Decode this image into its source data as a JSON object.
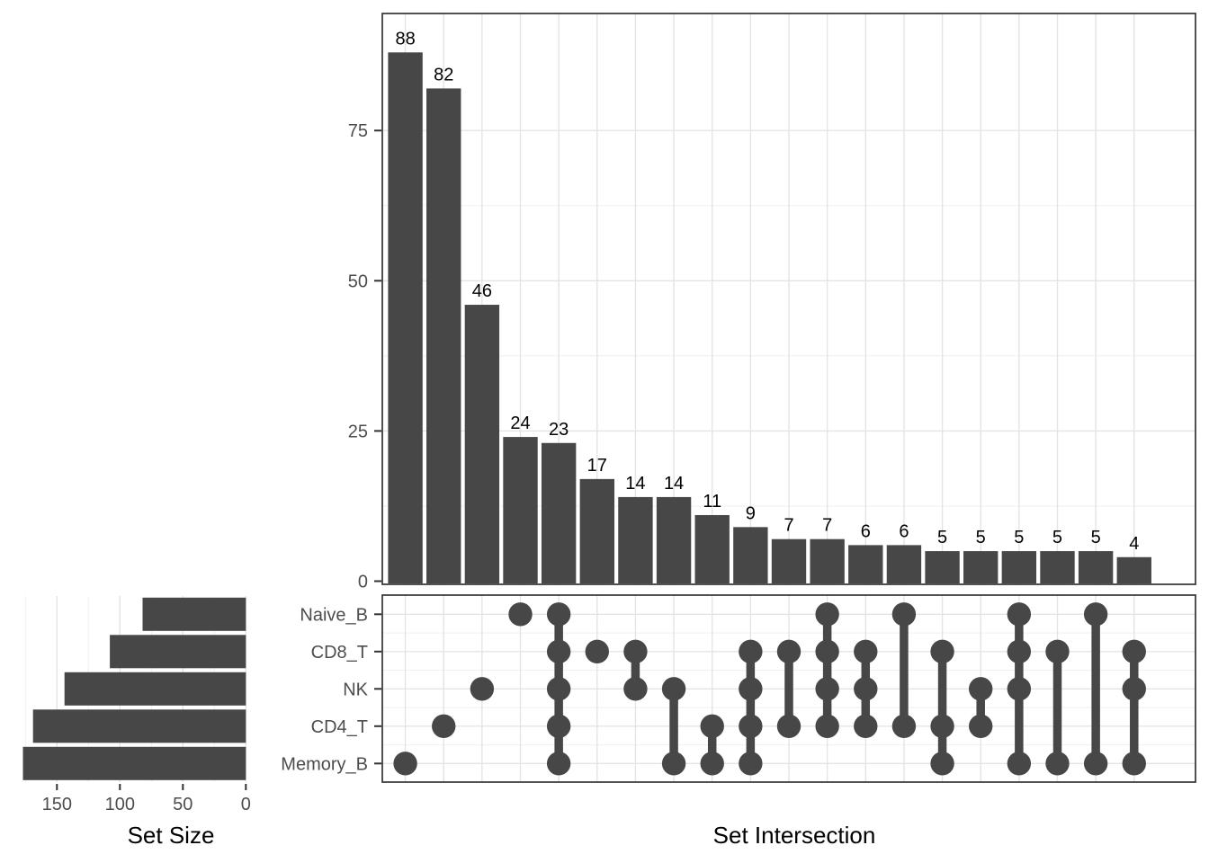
{
  "chart_data": {
    "type": "upset",
    "sets": [
      {
        "name": "Naive_B",
        "size": 82
      },
      {
        "name": "CD8_T",
        "size": 108
      },
      {
        "name": "NK",
        "size": 144
      },
      {
        "name": "CD4_T",
        "size": 169
      },
      {
        "name": "Memory_B",
        "size": 177
      }
    ],
    "intersections": [
      {
        "sets": [
          "Memory_B"
        ],
        "size": 88
      },
      {
        "sets": [
          "CD4_T"
        ],
        "size": 82
      },
      {
        "sets": [
          "NK"
        ],
        "size": 46
      },
      {
        "sets": [
          "Naive_B"
        ],
        "size": 24
      },
      {
        "sets": [
          "Naive_B",
          "CD8_T",
          "NK",
          "CD4_T",
          "Memory_B"
        ],
        "size": 23
      },
      {
        "sets": [
          "CD8_T"
        ],
        "size": 17
      },
      {
        "sets": [
          "CD8_T",
          "NK"
        ],
        "size": 14
      },
      {
        "sets": [
          "NK",
          "Memory_B"
        ],
        "size": 14
      },
      {
        "sets": [
          "CD4_T",
          "Memory_B"
        ],
        "size": 11
      },
      {
        "sets": [
          "CD8_T",
          "NK",
          "CD4_T",
          "Memory_B"
        ],
        "size": 9
      },
      {
        "sets": [
          "CD8_T",
          "CD4_T"
        ],
        "size": 7
      },
      {
        "sets": [
          "Naive_B",
          "CD8_T",
          "NK",
          "CD4_T"
        ],
        "size": 7
      },
      {
        "sets": [
          "CD8_T",
          "NK",
          "CD4_T"
        ],
        "size": 6
      },
      {
        "sets": [
          "Naive_B",
          "CD4_T"
        ],
        "size": 6
      },
      {
        "sets": [
          "CD8_T",
          "CD4_T",
          "Memory_B"
        ],
        "size": 5
      },
      {
        "sets": [
          "NK",
          "CD4_T"
        ],
        "size": 5
      },
      {
        "sets": [
          "Naive_B",
          "CD8_T",
          "NK",
          "Memory_B"
        ],
        "size": 5
      },
      {
        "sets": [
          "CD8_T",
          "Memory_B"
        ],
        "size": 5
      },
      {
        "sets": [
          "Naive_B",
          "Memory_B"
        ],
        "size": 5
      },
      {
        "sets": [
          "CD8_T",
          "NK",
          "Memory_B"
        ],
        "size": 4
      }
    ],
    "intersection_axis": {
      "ticks": [
        0,
        25,
        50,
        75
      ],
      "ylim": [
        0,
        93
      ]
    },
    "set_size_axis": {
      "label": "Set Size",
      "ticks": [
        150,
        100,
        50,
        0
      ],
      "range": [
        0,
        177
      ],
      "direction": "reversed"
    },
    "x_axis": {
      "label": "Set Intersection"
    },
    "legend": "none",
    "grid": true,
    "colors": {
      "bar": "#474747",
      "dot": "#474747",
      "link": "#474747",
      "value_label": "#000000",
      "axis_text": "#4d4d4d",
      "title_text": "#000000",
      "panel_border": "#333333",
      "grid_major": "#e4e4e4",
      "grid_minor": "#f1f1f1",
      "background": "#ffffff"
    }
  }
}
